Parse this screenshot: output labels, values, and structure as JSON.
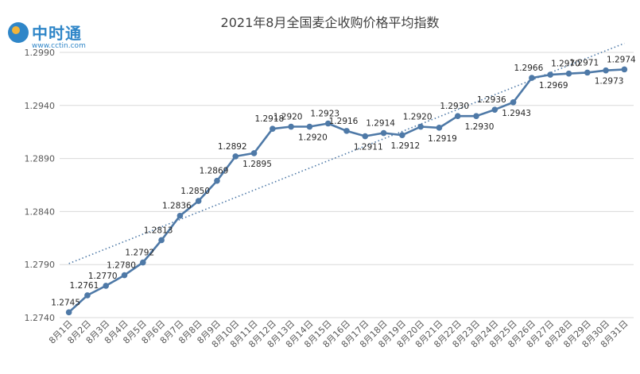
{
  "logo": {
    "name": "中时通",
    "url": "www.cctin.com"
  },
  "colors": {
    "series": "#4e79a7",
    "trend": "#4e79a7",
    "axis_text": "#595959",
    "grid": "#d9d9d9"
  },
  "chart_data": {
    "type": "line",
    "title": "2021年8月全国麦企收购价格平均指数",
    "xlabel": "",
    "ylabel": "",
    "ylim": [
      1.274,
      1.299
    ],
    "yticks": [
      "1.2740",
      "1.2790",
      "1.2840",
      "1.2890",
      "1.2940",
      "1.2990"
    ],
    "grid": "horizontal",
    "trendline": "linear, dotted",
    "categories": [
      "8月1日",
      "8月2日",
      "8月3日",
      "8月4日",
      "8月5日",
      "8月6日",
      "8月7日",
      "8月8日",
      "8月9日",
      "8月10日",
      "8月11日",
      "8月12日",
      "8月13日",
      "8月14日",
      "8月15日",
      "8月16日",
      "8月17日",
      "8月18日",
      "8月19日",
      "8月20日",
      "8月21日",
      "8月22日",
      "8月23日",
      "8月24日",
      "8月25日",
      "8月26日",
      "8月27日",
      "8月28日",
      "8月29日",
      "8月30日",
      "8月31日"
    ],
    "values": [
      1.2745,
      1.2761,
      1.277,
      1.278,
      1.2792,
      1.2813,
      1.2836,
      1.285,
      1.2869,
      1.2892,
      1.2895,
      1.2918,
      1.292,
      1.292,
      1.2923,
      1.2916,
      1.2911,
      1.2914,
      1.2912,
      1.292,
      1.2919,
      1.293,
      1.293,
      1.2936,
      1.2943,
      1.2966,
      1.2969,
      1.297,
      1.2971,
      1.2973,
      1.2974
    ],
    "data_labels": [
      "1.2745",
      "1.2761",
      "1.2770",
      "1.2780",
      "1.2792",
      "1.2813",
      "1.2836",
      "1.2850",
      "1.2869",
      "1.2892",
      "1.2895",
      "1.2918",
      "1.2920",
      "1.2920",
      "1.2923",
      "1.2916",
      "1.2911",
      "1.2914",
      "1.2912",
      "1.2920",
      "1.2919",
      "1.2930",
      "1.2930",
      "1.2936",
      "1.2943",
      "1.2966",
      "1.2969",
      "1.2970",
      "1.2971",
      "1.2973",
      "1.2974"
    ]
  }
}
